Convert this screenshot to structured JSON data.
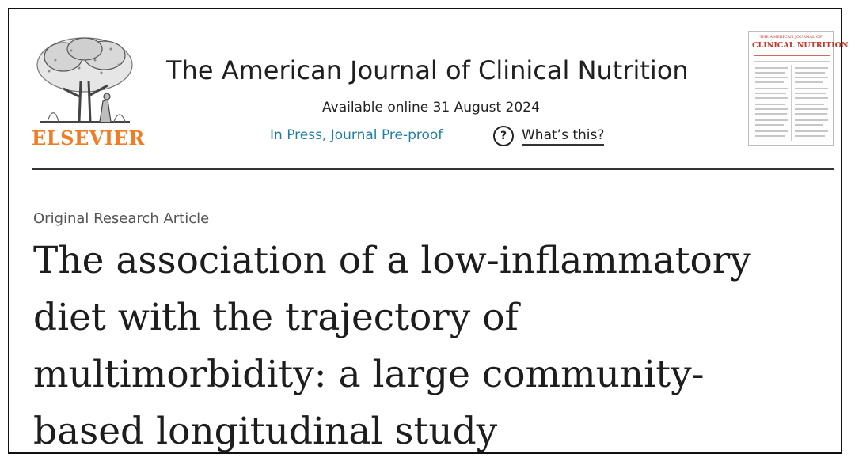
{
  "publisher": {
    "logo_word": "ELSEVIER",
    "logo_icon": "elsevier-tree-icon",
    "logo_color": "#f07c26"
  },
  "journal": {
    "title": "The American Journal of Clinical Nutrition",
    "available_online": "Available online 31 August 2024",
    "status_link": "In Press, Journal Pre-proof",
    "help_icon": "question-circle-icon",
    "help_link": "What’s this?",
    "status_link_color": "#1f7ea8"
  },
  "cover": {
    "top_line": "THE AMERICAN JOURNAL OF",
    "name": "CLINICAL NUTRITION",
    "accent_color": "#c0392b"
  },
  "article": {
    "type": "Original Research Article",
    "title_lines": [
      "The association of a low-inflammatory",
      "diet with the trajectory of",
      "multimorbidity: a large community-",
      "based longitudinal study"
    ]
  }
}
